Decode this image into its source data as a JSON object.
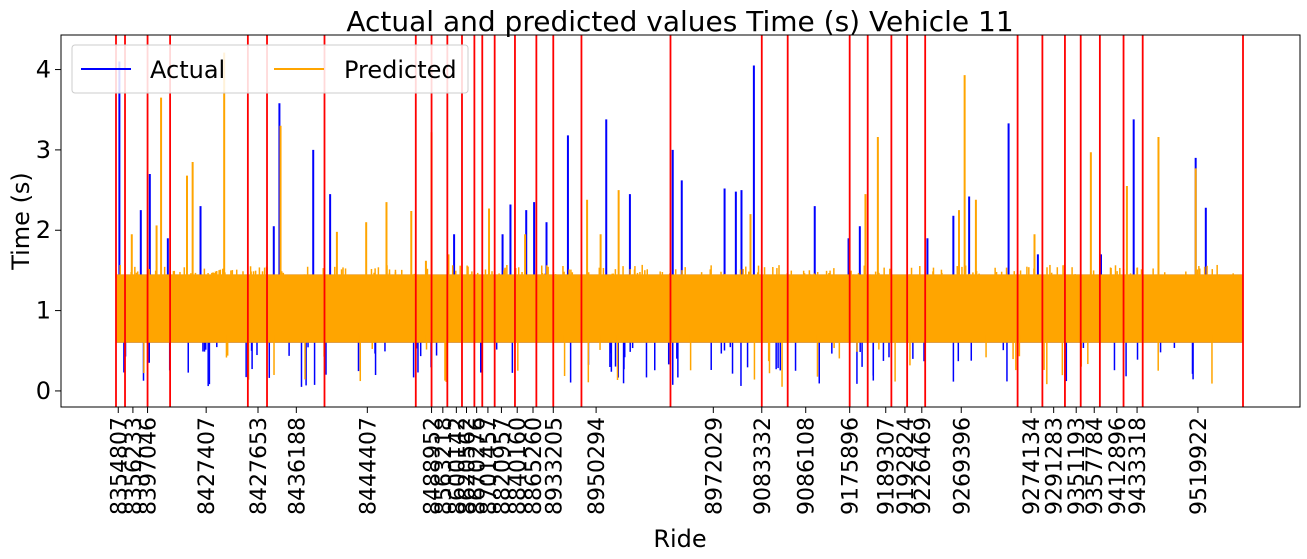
{
  "chart_data": {
    "type": "line",
    "title": "Actual and predicted values Time (s) Vehicle 11",
    "xlabel": "Ride",
    "ylabel": "Time (s)",
    "ylim": [
      -0.2,
      4.43
    ],
    "yticks": [
      0,
      1,
      2,
      3,
      4
    ],
    "grid": false,
    "legend_placement": "top-left",
    "colors": {
      "actual": "#0000ff",
      "predicted": "#ffa500",
      "separator": "#ff0000"
    },
    "series": [
      {
        "name": "Actual",
        "description_values": {
          "band_low": 0.6,
          "band_high": 1.45
        }
      },
      {
        "name": "Predicted",
        "description_values": {
          "band_low": 0.6,
          "band_high": 1.45
        }
      }
    ],
    "x_index_range": [
      0,
      1000
    ],
    "ride_ticks": [
      {
        "index": 2,
        "label": "8354807"
      },
      {
        "index": 15,
        "label": "8356233"
      },
      {
        "index": 28,
        "label": "8397046"
      },
      {
        "index": 80,
        "label": "8427407"
      },
      {
        "index": 126,
        "label": "8427653"
      },
      {
        "index": 160,
        "label": "8436188"
      },
      {
        "index": 223,
        "label": "8444407"
      },
      {
        "index": 280,
        "label": "8488952"
      },
      {
        "index": 290,
        "label": "8563218"
      },
      {
        "index": 302,
        "label": "8600142"
      },
      {
        "index": 311,
        "label": "8620562"
      },
      {
        "index": 320,
        "label": "8670276"
      },
      {
        "index": 330,
        "label": "8701457"
      },
      {
        "index": 342,
        "label": "8820957"
      },
      {
        "index": 356,
        "label": "8840160"
      },
      {
        "index": 370,
        "label": "8865260"
      },
      {
        "index": 388,
        "label": "8933205"
      },
      {
        "index": 426,
        "label": "8950294"
      },
      {
        "index": 530,
        "label": "8972029"
      },
      {
        "index": 573,
        "label": "9083332"
      },
      {
        "index": 612,
        "label": "9086108"
      },
      {
        "index": 651,
        "label": "9175896"
      },
      {
        "index": 683,
        "label": "9189307"
      },
      {
        "index": 700,
        "label": "9192824"
      },
      {
        "index": 715,
        "label": "9226469"
      },
      {
        "index": 750,
        "label": "9269396"
      },
      {
        "index": 812,
        "label": "9274134"
      },
      {
        "index": 832,
        "label": "9291283"
      },
      {
        "index": 852,
        "label": "9351193"
      },
      {
        "index": 868,
        "label": "9357784"
      },
      {
        "index": 888,
        "label": "9412896"
      },
      {
        "index": 906,
        "label": "9433318"
      },
      {
        "index": 960,
        "label": "9519922"
      }
    ],
    "separators": [
      0,
      8,
      28,
      48,
      117,
      134,
      185,
      266,
      280,
      294,
      307,
      318,
      325,
      336,
      354,
      373,
      388,
      413,
      492,
      573,
      596,
      651,
      667,
      688,
      702,
      718,
      800,
      822,
      842,
      856,
      873,
      894,
      911,
      1000
    ],
    "actual_spikes": [
      {
        "i": 3,
        "v": 4.1
      },
      {
        "i": 22,
        "v": 2.25
      },
      {
        "i": 30,
        "v": 2.7
      },
      {
        "i": 46,
        "v": 1.9
      },
      {
        "i": 75,
        "v": 2.3
      },
      {
        "i": 140,
        "v": 2.05
      },
      {
        "i": 145,
        "v": 3.58
      },
      {
        "i": 175,
        "v": 3.0
      },
      {
        "i": 190,
        "v": 2.45
      },
      {
        "i": 300,
        "v": 1.95
      },
      {
        "i": 343,
        "v": 1.95
      },
      {
        "i": 350,
        "v": 2.32
      },
      {
        "i": 364,
        "v": 2.25
      },
      {
        "i": 371,
        "v": 2.35
      },
      {
        "i": 382,
        "v": 2.1
      },
      {
        "i": 401,
        "v": 3.18
      },
      {
        "i": 435,
        "v": 3.38
      },
      {
        "i": 456,
        "v": 2.45
      },
      {
        "i": 494,
        "v": 3.0
      },
      {
        "i": 502,
        "v": 2.62
      },
      {
        "i": 540,
        "v": 2.52
      },
      {
        "i": 550,
        "v": 2.48
      },
      {
        "i": 555,
        "v": 2.5
      },
      {
        "i": 566,
        "v": 4.05
      },
      {
        "i": 620,
        "v": 2.3
      },
      {
        "i": 650,
        "v": 1.9
      },
      {
        "i": 660,
        "v": 2.05
      },
      {
        "i": 720,
        "v": 1.9
      },
      {
        "i": 743,
        "v": 2.18
      },
      {
        "i": 757,
        "v": 2.42
      },
      {
        "i": 792,
        "v": 3.33
      },
      {
        "i": 818,
        "v": 1.7
      },
      {
        "i": 874,
        "v": 1.7
      },
      {
        "i": 903,
        "v": 3.38
      },
      {
        "i": 958,
        "v": 2.9
      },
      {
        "i": 967,
        "v": 2.28
      }
    ],
    "predicted_spikes": [
      {
        "i": 14,
        "v": 1.95
      },
      {
        "i": 36,
        "v": 2.06
      },
      {
        "i": 40,
        "v": 3.65
      },
      {
        "i": 63,
        "v": 2.68
      },
      {
        "i": 68,
        "v": 2.85
      },
      {
        "i": 96,
        "v": 4.21
      },
      {
        "i": 146,
        "v": 3.3
      },
      {
        "i": 196,
        "v": 1.98
      },
      {
        "i": 222,
        "v": 2.1
      },
      {
        "i": 240,
        "v": 2.35
      },
      {
        "i": 262,
        "v": 2.24
      },
      {
        "i": 275,
        "v": 1.62
      },
      {
        "i": 280,
        "v": 3.22
      },
      {
        "i": 295,
        "v": 1.7
      },
      {
        "i": 331,
        "v": 2.27
      },
      {
        "i": 363,
        "v": 1.95
      },
      {
        "i": 418,
        "v": 2.38
      },
      {
        "i": 430,
        "v": 1.95
      },
      {
        "i": 446,
        "v": 2.5
      },
      {
        "i": 563,
        "v": 2.2
      },
      {
        "i": 665,
        "v": 2.45
      },
      {
        "i": 676,
        "v": 3.16
      },
      {
        "i": 748,
        "v": 2.25
      },
      {
        "i": 753,
        "v": 3.93
      },
      {
        "i": 763,
        "v": 2.38
      },
      {
        "i": 815,
        "v": 1.95
      },
      {
        "i": 865,
        "v": 2.97
      },
      {
        "i": 897,
        "v": 2.55
      },
      {
        "i": 925,
        "v": 3.16
      },
      {
        "i": 958,
        "v": 2.77
      }
    ]
  }
}
